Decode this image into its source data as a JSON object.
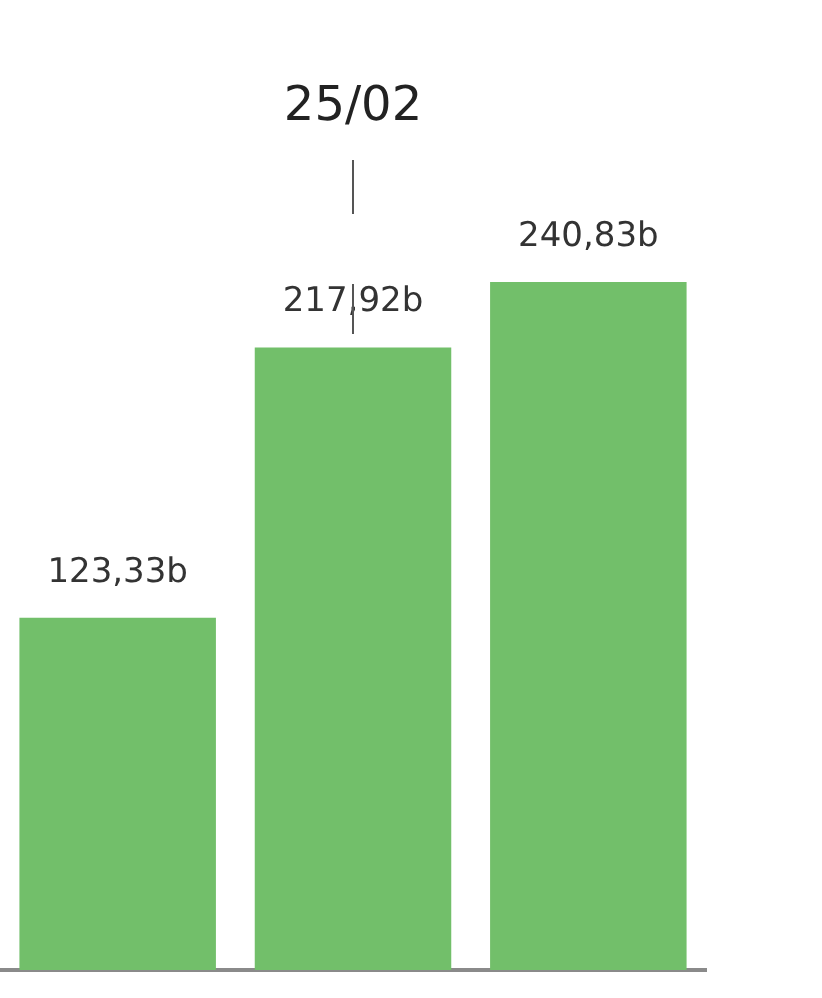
{
  "chart_data": {
    "type": "bar",
    "categories": [
      null,
      null,
      null
    ],
    "values": [
      123.33,
      217.92,
      240.83
    ],
    "color": "#72bf6a",
    "value_labels": [
      "123,33b",
      "217,92b",
      "240,83b"
    ],
    "annotations": [
      "25/02"
    ]
  }
}
